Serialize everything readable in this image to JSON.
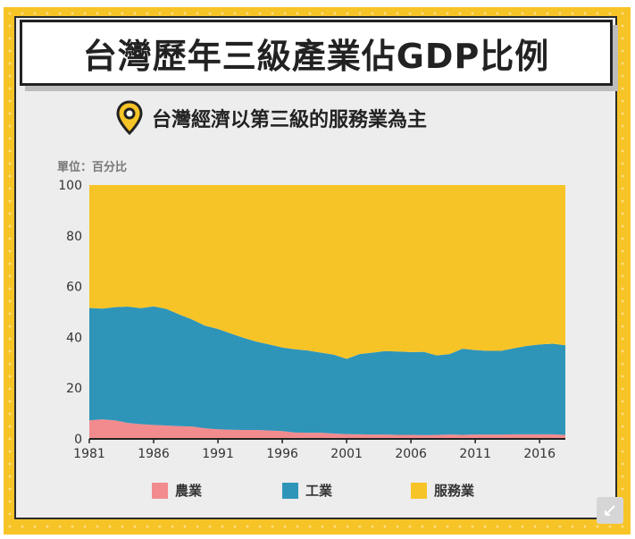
{
  "title": "台灣歷年三級產業佔GDP比例",
  "subtitle": "台灣經濟以第三級的服務業為主",
  "unit_label": "單位：百分比",
  "icons": {
    "subtitle_icon": "map-pin-icon",
    "corner": "expand-icon"
  },
  "colors": {
    "agriculture": "#f28b8e",
    "industry": "#2e95b9",
    "services": "#f7c427",
    "frame": "#f7c427"
  },
  "chart_data": {
    "type": "area",
    "stacked": true,
    "x": [
      1981,
      1982,
      1983,
      1984,
      1985,
      1986,
      1987,
      1988,
      1989,
      1990,
      1991,
      1992,
      1993,
      1994,
      1995,
      1996,
      1997,
      1998,
      1999,
      2000,
      2001,
      2002,
      2003,
      2004,
      2005,
      2006,
      2007,
      2008,
      2009,
      2010,
      2011,
      2012,
      2013,
      2014,
      2015,
      2016,
      2017,
      2018
    ],
    "xticks": [
      "1981",
      "1986",
      "1991",
      "1996",
      "2001",
      "2006",
      "2011",
      "2016"
    ],
    "yticks": [
      "0",
      "20",
      "40",
      "60",
      "80",
      "100"
    ],
    "ylim": [
      0,
      100
    ],
    "series": [
      {
        "name": "農業",
        "color": "#f28b8e",
        "values": [
          7.3,
          7.7,
          7.3,
          6.3,
          5.8,
          5.5,
          5.3,
          5.0,
          4.9,
          4.2,
          3.8,
          3.6,
          3.5,
          3.5,
          3.3,
          3.1,
          2.5,
          2.4,
          2.4,
          2.1,
          1.9,
          1.8,
          1.7,
          1.7,
          1.6,
          1.6,
          1.5,
          1.6,
          1.7,
          1.6,
          1.7,
          1.7,
          1.7,
          1.8,
          1.8,
          1.8,
          1.8,
          1.6
        ]
      },
      {
        "name": "工業",
        "color": "#2e95b9",
        "values": [
          44.3,
          43.6,
          44.6,
          45.8,
          45.7,
          46.7,
          45.9,
          44.0,
          42.1,
          40.4,
          39.5,
          37.9,
          36.3,
          34.8,
          33.9,
          32.9,
          32.8,
          32.4,
          31.6,
          31.1,
          29.6,
          31.6,
          32.3,
          32.9,
          32.8,
          32.6,
          32.8,
          31.3,
          31.7,
          33.9,
          33.3,
          33.0,
          33.0,
          33.9,
          34.8,
          35.4,
          35.7,
          35.3
        ]
      },
      {
        "name": "服務業",
        "color": "#f7c427",
        "values": [
          48.4,
          48.7,
          48.1,
          47.9,
          48.5,
          47.8,
          48.8,
          51.0,
          53.0,
          55.4,
          56.7,
          58.5,
          60.2,
          61.7,
          62.8,
          64.0,
          64.7,
          65.2,
          66.0,
          66.8,
          68.5,
          66.6,
          66.0,
          65.4,
          65.6,
          65.8,
          65.7,
          67.1,
          66.6,
          64.5,
          65.0,
          65.3,
          65.3,
          64.3,
          63.4,
          62.8,
          62.5,
          63.1
        ]
      }
    ],
    "legend_position": "bottom",
    "grid": false
  }
}
